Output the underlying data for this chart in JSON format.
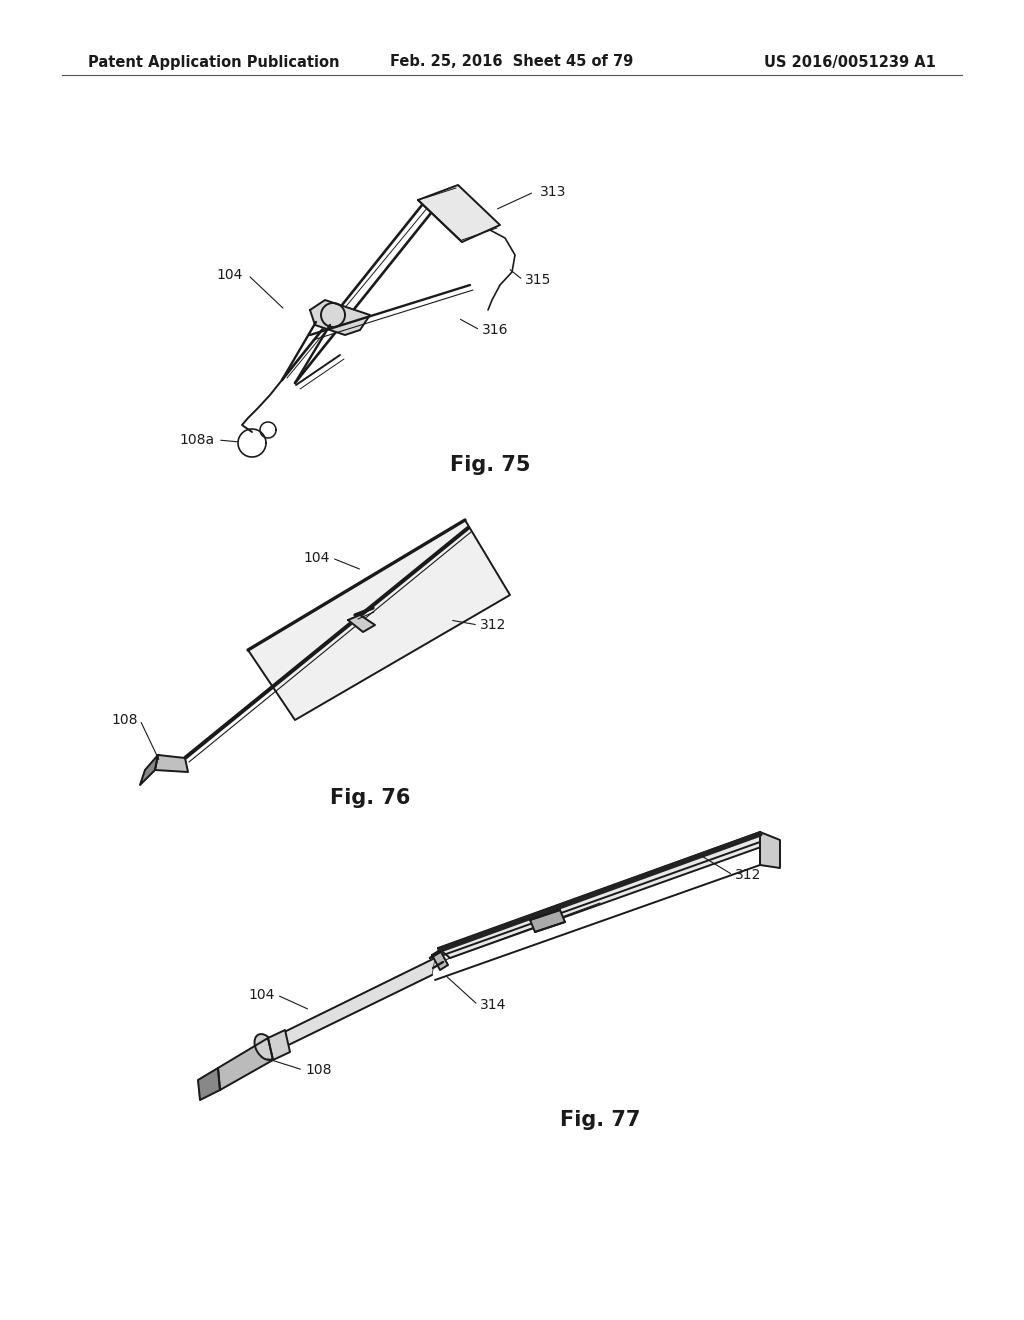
{
  "background_color": "#ffffff",
  "header_left": "Patent Application Publication",
  "header_mid": "Feb. 25, 2016  Sheet 45 of 79",
  "header_right": "US 2016/0051239 A1",
  "fig75_label": "Fig. 75",
  "fig76_label": "Fig. 76",
  "fig77_label": "Fig. 77",
  "lc": "#1a1a1a",
  "lw": 1.4,
  "ann_fontsize": 10,
  "fig_label_fontsize": 15,
  "header_fontsize": 10.5
}
